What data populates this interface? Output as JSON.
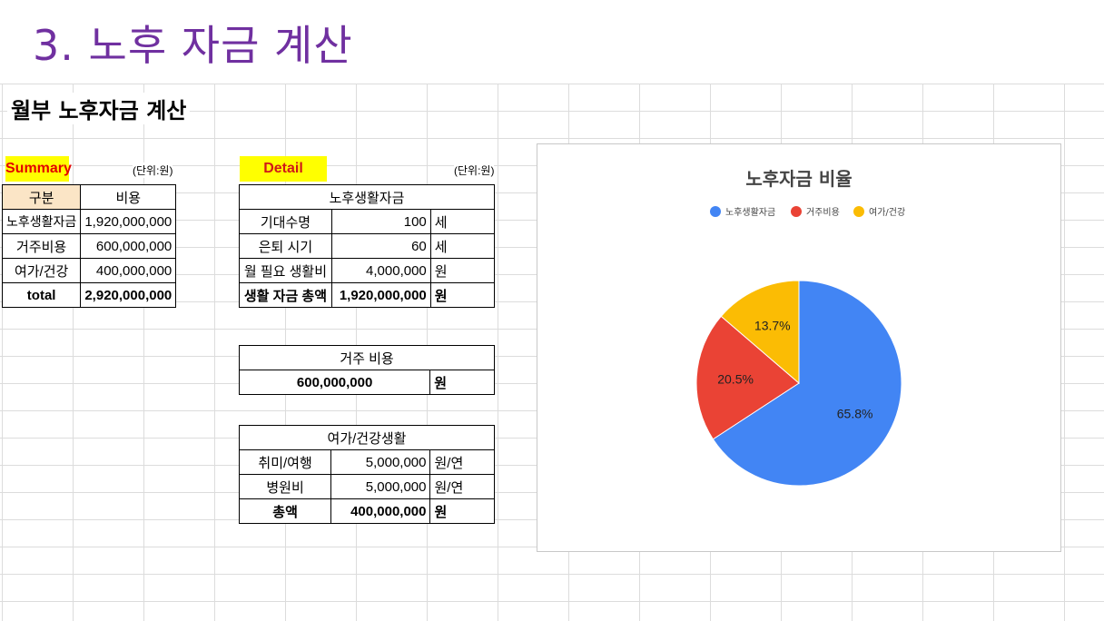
{
  "slide": {
    "title": "3. 노후 자금 계산"
  },
  "sheet": {
    "title": "월부 노후자금 계산"
  },
  "summary": {
    "label": "Summary",
    "unit": "(단위:원)",
    "col_category": "구분",
    "col_cost": "비용",
    "rows": [
      {
        "name": "노후생활자금",
        "value": "1,920,000,000"
      },
      {
        "name": "거주비용",
        "value": "600,000,000"
      },
      {
        "name": "여가/건강",
        "value": "400,000,000"
      }
    ],
    "total_label": "total",
    "total_value": "2,920,000,000"
  },
  "detail": {
    "label": "Detail",
    "unit": "(단위:원)",
    "living": {
      "title": "노후생활자금",
      "rows": [
        {
          "name": "기대수명",
          "value": "100",
          "unit": "세"
        },
        {
          "name": "은퇴 시기",
          "value": "60",
          "unit": "세"
        },
        {
          "name": "월 필요 생활비",
          "value": "4,000,000",
          "unit": "원"
        }
      ],
      "total_name": "생활 자금 총액",
      "total_value": "1,920,000,000",
      "total_unit": "원"
    },
    "housing": {
      "title": "거주 비용",
      "value": "600,000,000",
      "unit": "원"
    },
    "leisure": {
      "title": "여가/건강생활",
      "rows": [
        {
          "name": "취미/여행",
          "value": "5,000,000",
          "unit": "원/연"
        },
        {
          "name": "병원비",
          "value": "5,000,000",
          "unit": "원/연"
        }
      ],
      "total_name": "총액",
      "total_value": "400,000,000",
      "total_unit": "원"
    }
  },
  "chart_data": {
    "type": "pie",
    "title": "노후자금 비율",
    "legend_position": "top",
    "slices": [
      {
        "name": "노후생활자금",
        "value": 65.8,
        "label": "65.8%",
        "color": "#4285f4"
      },
      {
        "name": "거주비용",
        "value": 20.5,
        "label": "20.5%",
        "color": "#ea4335"
      },
      {
        "name": "여가/건강",
        "value": 13.7,
        "label": "13.7%",
        "color": "#fbbc04"
      }
    ]
  }
}
